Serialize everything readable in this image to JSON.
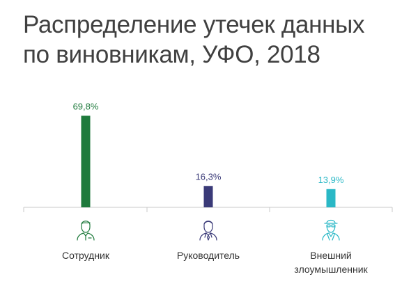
{
  "title_line1": "Распределение утечек данных",
  "title_line2": "по виновникам, УФО, 2018",
  "chart_data": {
    "type": "bar",
    "title": "Распределение утечек данных по виновникам, УФО, 2018",
    "categories": [
      "Сотрудник",
      "Руководитель",
      "Внешний злоумышленник"
    ],
    "category_lines": [
      [
        "Сотрудник"
      ],
      [
        "Руководитель"
      ],
      [
        "Внешний",
        "злоумышленник"
      ]
    ],
    "values": [
      69.8,
      16.3,
      13.9
    ],
    "value_labels": [
      "69,8%",
      "16,3%",
      "13,9%"
    ],
    "colors": [
      "#1e7a3c",
      "#3a3a78",
      "#2ab8c6"
    ],
    "icons": [
      "employee-icon",
      "manager-icon",
      "hacker-icon"
    ],
    "ylim": [
      0,
      70
    ],
    "grid": false,
    "legend": "none"
  }
}
